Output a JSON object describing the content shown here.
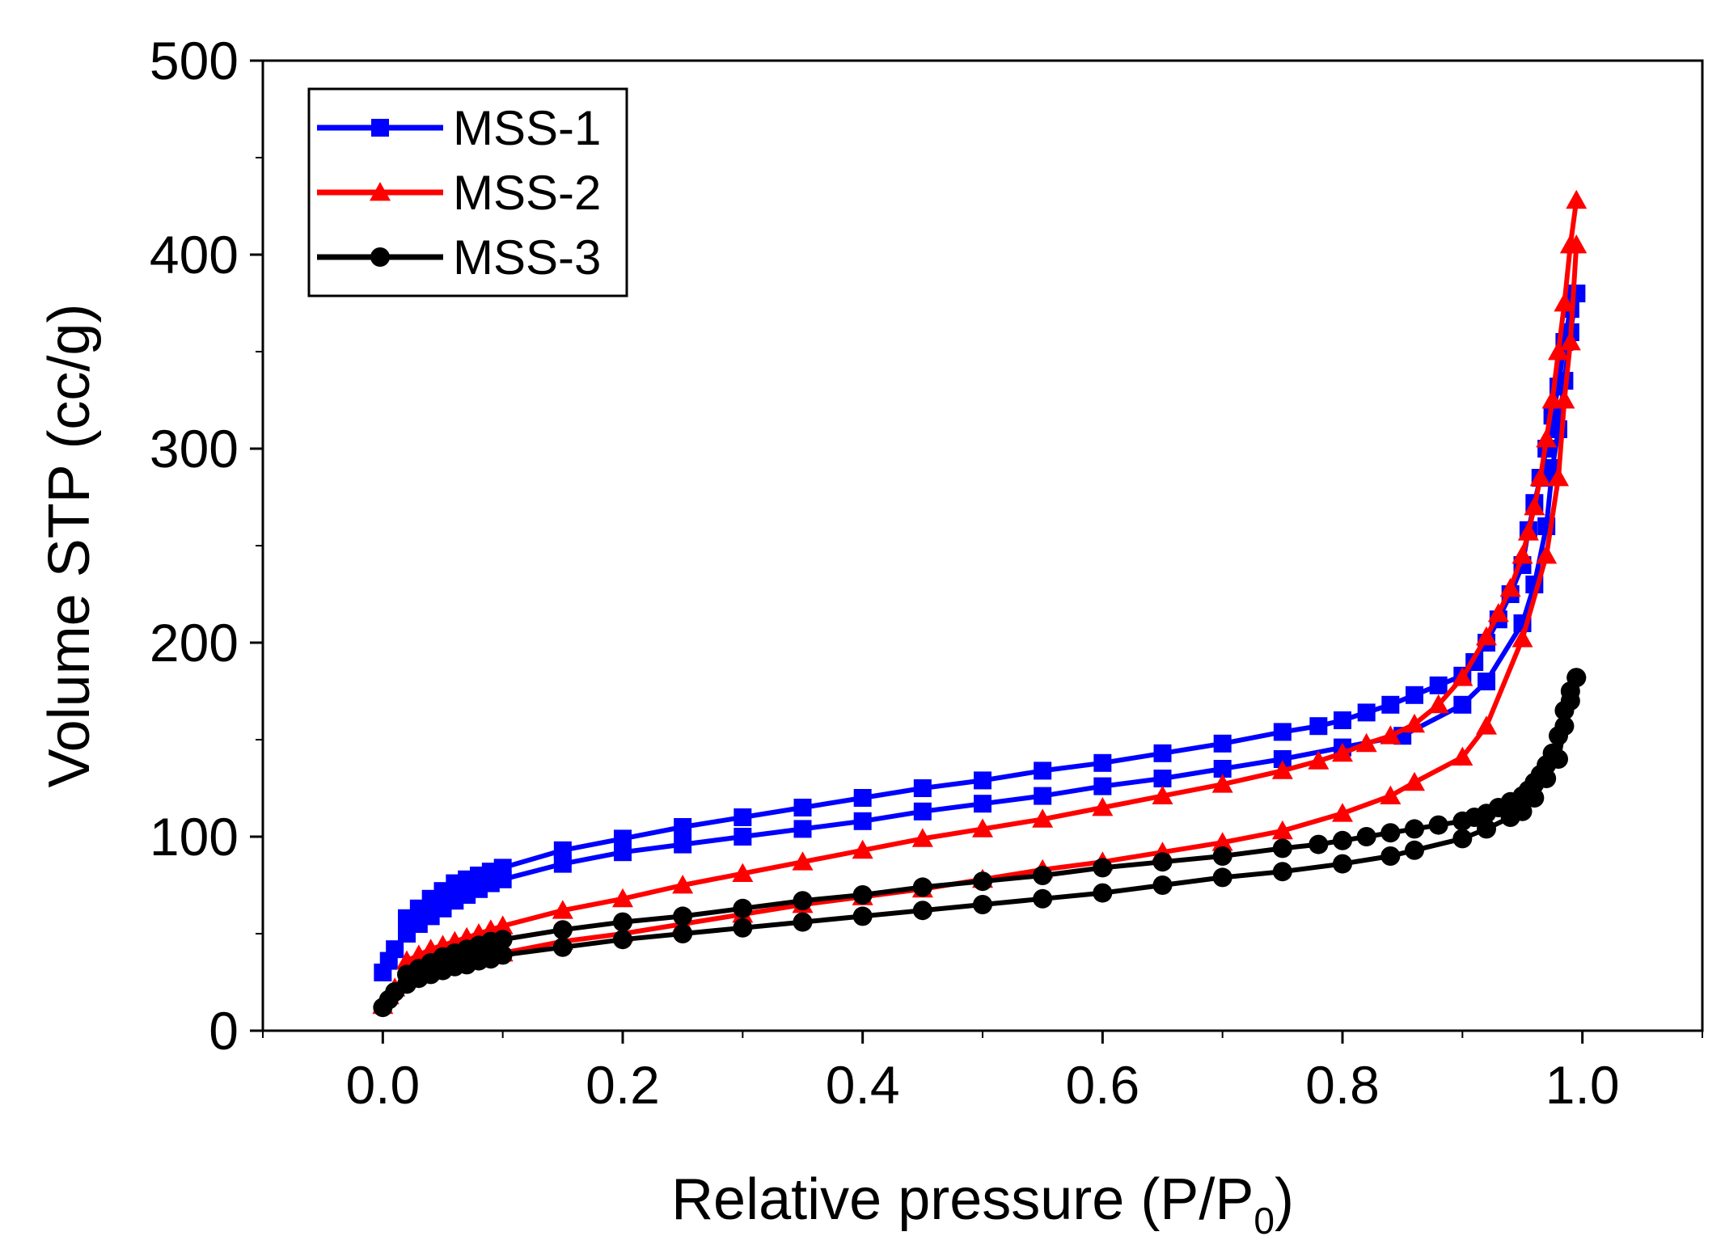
{
  "chart_data": {
    "type": "line",
    "title": "",
    "xlabel": "Relative pressure (P/P",
    "xlabel_subscript": "0",
    "xlabel_suffix": ")",
    "ylabel": "Volume STP (cc/g)",
    "xlim": [
      -0.1,
      1.1
    ],
    "ylim": [
      0,
      500
    ],
    "x_ticks": [
      0.0,
      0.2,
      0.4,
      0.6,
      0.8,
      1.0
    ],
    "x_tick_labels": [
      "0.0",
      "0.2",
      "0.4",
      "0.6",
      "0.8",
      "1.0"
    ],
    "y_ticks": [
      0,
      100,
      200,
      300,
      400,
      500
    ],
    "y_tick_labels": [
      "0",
      "100",
      "200",
      "300",
      "400",
      "500"
    ],
    "grid": false,
    "legend_position": "top-left",
    "series": [
      {
        "name": "MSS-1",
        "color": "#0000ff",
        "marker": "square",
        "adsorption": {
          "x": [
            0.0,
            0.005,
            0.01,
            0.02,
            0.03,
            0.04,
            0.05,
            0.06,
            0.07,
            0.08,
            0.09,
            0.1,
            0.15,
            0.2,
            0.25,
            0.3,
            0.35,
            0.4,
            0.45,
            0.5,
            0.55,
            0.6,
            0.65,
            0.7,
            0.75,
            0.8,
            0.85,
            0.9,
            0.92,
            0.95,
            0.96,
            0.97,
            0.975,
            0.98,
            0.985,
            0.99,
            0.995
          ],
          "y": [
            30,
            36,
            42,
            50,
            55,
            59,
            63,
            67,
            70,
            73,
            76,
            78,
            86,
            92,
            96,
            100,
            104,
            108,
            113,
            117,
            121,
            126,
            130,
            135,
            140,
            146,
            152,
            168,
            180,
            210,
            230,
            260,
            290,
            310,
            335,
            360,
            380
          ]
        },
        "desorption": {
          "x": [
            0.995,
            0.99,
            0.985,
            0.98,
            0.975,
            0.97,
            0.965,
            0.96,
            0.955,
            0.95,
            0.94,
            0.93,
            0.92,
            0.91,
            0.9,
            0.88,
            0.86,
            0.84,
            0.82,
            0.8,
            0.78,
            0.75,
            0.7,
            0.65,
            0.6,
            0.55,
            0.5,
            0.45,
            0.4,
            0.35,
            0.3,
            0.25,
            0.2,
            0.15,
            0.1,
            0.09,
            0.08,
            0.07,
            0.06,
            0.05,
            0.04,
            0.03,
            0.02
          ],
          "y": [
            380,
            372,
            355,
            332,
            317,
            300,
            285,
            272,
            258,
            240,
            225,
            212,
            200,
            190,
            183,
            178,
            173,
            168,
            164,
            160,
            157,
            154,
            148,
            143,
            138,
            134,
            129,
            125,
            120,
            115,
            110,
            105,
            99,
            93,
            84,
            82,
            80,
            78,
            76,
            72,
            68,
            63,
            58
          ]
        }
      },
      {
        "name": "MSS-2",
        "color": "#ff0000",
        "marker": "triangle",
        "adsorption": {
          "x": [
            0.0,
            0.005,
            0.01,
            0.02,
            0.03,
            0.04,
            0.05,
            0.06,
            0.07,
            0.08,
            0.09,
            0.1,
            0.15,
            0.2,
            0.25,
            0.3,
            0.35,
            0.4,
            0.45,
            0.5,
            0.55,
            0.6,
            0.65,
            0.7,
            0.75,
            0.8,
            0.84,
            0.86,
            0.9,
            0.92,
            0.95,
            0.97,
            0.98,
            0.985,
            0.99,
            0.995
          ],
          "y": [
            13,
            18,
            22,
            27,
            30,
            32,
            34,
            36,
            37,
            38,
            39,
            40,
            46,
            50,
            55,
            60,
            65,
            69,
            73,
            78,
            83,
            87,
            92,
            97,
            103,
            112,
            121,
            128,
            141,
            157,
            202,
            245,
            285,
            325,
            355,
            405
          ]
        },
        "desorption": {
          "x": [
            0.995,
            0.99,
            0.985,
            0.98,
            0.975,
            0.97,
            0.965,
            0.96,
            0.955,
            0.95,
            0.94,
            0.93,
            0.92,
            0.9,
            0.88,
            0.86,
            0.84,
            0.82,
            0.8,
            0.78,
            0.75,
            0.7,
            0.65,
            0.6,
            0.55,
            0.5,
            0.45,
            0.4,
            0.35,
            0.3,
            0.25,
            0.2,
            0.15,
            0.1,
            0.09,
            0.08,
            0.07,
            0.06,
            0.05,
            0.04,
            0.03,
            0.02
          ],
          "y": [
            428,
            405,
            375,
            350,
            325,
            305,
            285,
            270,
            257,
            245,
            228,
            215,
            203,
            182,
            168,
            158,
            152,
            148,
            143,
            139,
            134,
            127,
            121,
            115,
            109,
            104,
            99,
            93,
            87,
            81,
            75,
            68,
            62,
            54,
            52,
            50,
            48,
            46,
            44,
            42,
            39,
            36
          ]
        }
      },
      {
        "name": "MSS-3",
        "color": "#000000",
        "marker": "circle",
        "adsorption": {
          "x": [
            0.0,
            0.005,
            0.01,
            0.02,
            0.03,
            0.04,
            0.05,
            0.06,
            0.07,
            0.08,
            0.09,
            0.1,
            0.15,
            0.2,
            0.25,
            0.3,
            0.35,
            0.4,
            0.45,
            0.5,
            0.55,
            0.6,
            0.65,
            0.7,
            0.75,
            0.8,
            0.84,
            0.86,
            0.9,
            0.92,
            0.94,
            0.95,
            0.96,
            0.97,
            0.98,
            0.985,
            0.99,
            0.995
          ],
          "y": [
            12,
            16,
            20,
            24,
            27,
            29,
            31,
            33,
            34,
            36,
            37,
            39,
            43,
            47,
            50,
            53,
            56,
            59,
            62,
            65,
            68,
            71,
            75,
            79,
            82,
            86,
            90,
            93,
            99,
            104,
            110,
            113,
            120,
            130,
            140,
            157,
            170,
            182
          ]
        },
        "desorption": {
          "x": [
            0.995,
            0.99,
            0.985,
            0.98,
            0.975,
            0.97,
            0.965,
            0.96,
            0.955,
            0.95,
            0.94,
            0.93,
            0.92,
            0.91,
            0.9,
            0.88,
            0.86,
            0.84,
            0.82,
            0.8,
            0.78,
            0.75,
            0.7,
            0.65,
            0.6,
            0.55,
            0.5,
            0.45,
            0.4,
            0.35,
            0.3,
            0.25,
            0.2,
            0.15,
            0.1,
            0.09,
            0.08,
            0.07,
            0.06,
            0.05,
            0.04,
            0.03,
            0.02
          ],
          "y": [
            182,
            175,
            165,
            152,
            143,
            137,
            132,
            128,
            124,
            121,
            118,
            115,
            112,
            110,
            108,
            106,
            104,
            102,
            100,
            98,
            96,
            94,
            90,
            87,
            84,
            80,
            77,
            74,
            70,
            67,
            63,
            59,
            56,
            52,
            47,
            46,
            44,
            42,
            40,
            38,
            35,
            32,
            29
          ]
        }
      }
    ]
  }
}
